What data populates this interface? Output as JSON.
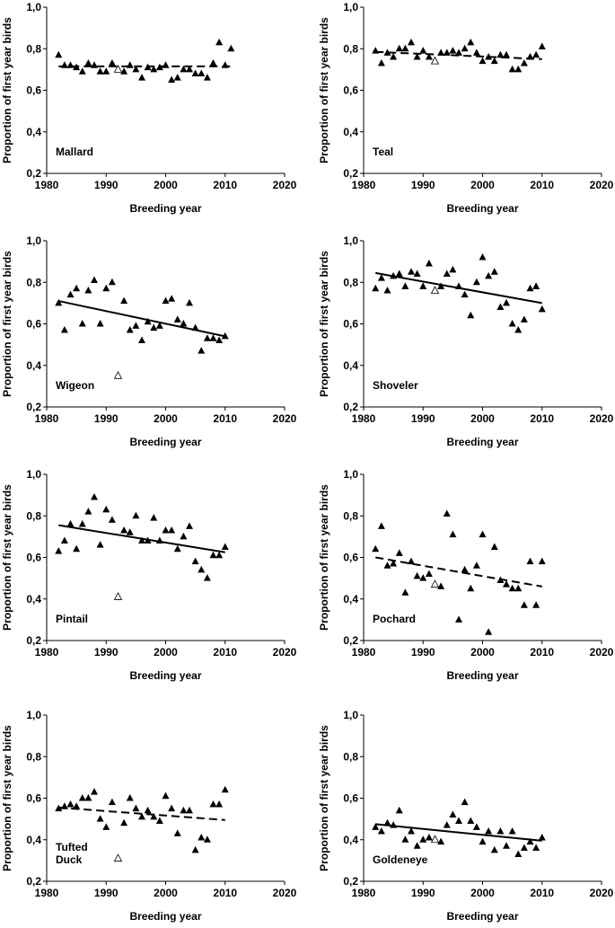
{
  "figure": {
    "xlabel": "Breeding year",
    "ylabel": "Proportion of first year birds",
    "x_ticks": [
      "1980",
      "1990",
      "2000",
      "2010",
      "2020"
    ],
    "y_ticks": [
      "0,2",
      "0,4",
      "0,6",
      "0,8",
      "1,0"
    ]
  },
  "chart_data": [
    {
      "type": "scatter",
      "species": [
        "Mallard"
      ],
      "xlim": [
        1980,
        2020
      ],
      "ylim": [
        0.2,
        1.0
      ],
      "points": [
        [
          1982,
          0.77
        ],
        [
          1983,
          0.72
        ],
        [
          1984,
          0.72
        ],
        [
          1985,
          0.71
        ],
        [
          1986,
          0.69
        ],
        [
          1987,
          0.73
        ],
        [
          1988,
          0.72
        ],
        [
          1989,
          0.69
        ],
        [
          1990,
          0.69
        ],
        [
          1991,
          0.73
        ],
        [
          1993,
          0.69
        ],
        [
          1994,
          0.72
        ],
        [
          1995,
          0.7
        ],
        [
          1996,
          0.66
        ],
        [
          1997,
          0.71
        ],
        [
          1998,
          0.7
        ],
        [
          1999,
          0.71
        ],
        [
          2000,
          0.72
        ],
        [
          2001,
          0.65
        ],
        [
          2002,
          0.66
        ],
        [
          2003,
          0.7
        ],
        [
          2004,
          0.7
        ],
        [
          2005,
          0.68
        ],
        [
          2006,
          0.68
        ],
        [
          2007,
          0.66
        ],
        [
          2008,
          0.73
        ],
        [
          2009,
          0.83
        ],
        [
          2010,
          0.72
        ],
        [
          2011,
          0.8
        ]
      ],
      "open_points": [
        [
          1992,
          0.7
        ]
      ],
      "trend": {
        "x": [
          1982,
          2011
        ],
        "y": [
          0.715,
          0.715
        ],
        "style": "dashed"
      }
    },
    {
      "type": "scatter",
      "species": [
        "Teal"
      ],
      "xlim": [
        1980,
        2020
      ],
      "ylim": [
        0.2,
        1.0
      ],
      "points": [
        [
          1982,
          0.79
        ],
        [
          1983,
          0.73
        ],
        [
          1984,
          0.78
        ],
        [
          1985,
          0.76
        ],
        [
          1986,
          0.8
        ],
        [
          1987,
          0.8
        ],
        [
          1988,
          0.83
        ],
        [
          1989,
          0.76
        ],
        [
          1990,
          0.79
        ],
        [
          1991,
          0.76
        ],
        [
          1993,
          0.78
        ],
        [
          1994,
          0.78
        ],
        [
          1995,
          0.79
        ],
        [
          1996,
          0.78
        ],
        [
          1997,
          0.8
        ],
        [
          1998,
          0.83
        ],
        [
          1999,
          0.78
        ],
        [
          2000,
          0.74
        ],
        [
          2001,
          0.76
        ],
        [
          2002,
          0.74
        ],
        [
          2003,
          0.77
        ],
        [
          2004,
          0.77
        ],
        [
          2005,
          0.7
        ],
        [
          2006,
          0.7
        ],
        [
          2007,
          0.73
        ],
        [
          2008,
          0.76
        ],
        [
          2009,
          0.77
        ],
        [
          2010,
          0.81
        ]
      ],
      "open_points": [
        [
          1992,
          0.74
        ]
      ],
      "trend": {
        "x": [
          1982,
          2010
        ],
        "y": [
          0.785,
          0.75
        ],
        "style": "dashed"
      }
    },
    {
      "type": "scatter",
      "species": [
        "Wigeon"
      ],
      "xlim": [
        1980,
        2020
      ],
      "ylim": [
        0.2,
        1.0
      ],
      "points": [
        [
          1982,
          0.7
        ],
        [
          1983,
          0.57
        ],
        [
          1984,
          0.74
        ],
        [
          1985,
          0.77
        ],
        [
          1986,
          0.6
        ],
        [
          1987,
          0.76
        ],
        [
          1988,
          0.81
        ],
        [
          1989,
          0.6
        ],
        [
          1990,
          0.77
        ],
        [
          1991,
          0.8
        ],
        [
          1993,
          0.71
        ],
        [
          1994,
          0.57
        ],
        [
          1995,
          0.59
        ],
        [
          1996,
          0.52
        ],
        [
          1997,
          0.61
        ],
        [
          1998,
          0.58
        ],
        [
          1999,
          0.59
        ],
        [
          2000,
          0.71
        ],
        [
          2001,
          0.72
        ],
        [
          2002,
          0.62
        ],
        [
          2003,
          0.6
        ],
        [
          2004,
          0.7
        ],
        [
          2005,
          0.58
        ],
        [
          2006,
          0.47
        ],
        [
          2007,
          0.53
        ],
        [
          2008,
          0.53
        ],
        [
          2009,
          0.52
        ],
        [
          2010,
          0.54
        ]
      ],
      "open_points": [
        [
          1992,
          0.35
        ]
      ],
      "trend": {
        "x": [
          1982,
          2010
        ],
        "y": [
          0.71,
          0.54
        ],
        "style": "solid"
      }
    },
    {
      "type": "scatter",
      "species": [
        "Shoveler"
      ],
      "xlim": [
        1980,
        2020
      ],
      "ylim": [
        0.2,
        1.0
      ],
      "points": [
        [
          1982,
          0.77
        ],
        [
          1983,
          0.82
        ],
        [
          1984,
          0.76
        ],
        [
          1985,
          0.83
        ],
        [
          1986,
          0.84
        ],
        [
          1987,
          0.78
        ],
        [
          1988,
          0.85
        ],
        [
          1989,
          0.84
        ],
        [
          1990,
          0.78
        ],
        [
          1991,
          0.89
        ],
        [
          1993,
          0.78
        ],
        [
          1994,
          0.84
        ],
        [
          1995,
          0.86
        ],
        [
          1996,
          0.78
        ],
        [
          1997,
          0.74
        ],
        [
          1998,
          0.64
        ],
        [
          1999,
          0.8
        ],
        [
          2000,
          0.92
        ],
        [
          2001,
          0.83
        ],
        [
          2002,
          0.85
        ],
        [
          2003,
          0.68
        ],
        [
          2004,
          0.7
        ],
        [
          2005,
          0.6
        ],
        [
          2006,
          0.57
        ],
        [
          2007,
          0.62
        ],
        [
          2008,
          0.77
        ],
        [
          2009,
          0.78
        ],
        [
          2010,
          0.67
        ]
      ],
      "open_points": [
        [
          1992,
          0.76
        ]
      ],
      "trend": {
        "x": [
          1982,
          2010
        ],
        "y": [
          0.845,
          0.7
        ],
        "style": "solid"
      }
    },
    {
      "type": "scatter",
      "species": [
        "Pintail"
      ],
      "xlim": [
        1980,
        2020
      ],
      "ylim": [
        0.2,
        1.0
      ],
      "points": [
        [
          1982,
          0.63
        ],
        [
          1983,
          0.68
        ],
        [
          1984,
          0.76
        ],
        [
          1985,
          0.64
        ],
        [
          1986,
          0.76
        ],
        [
          1987,
          0.82
        ],
        [
          1988,
          0.89
        ],
        [
          1989,
          0.66
        ],
        [
          1990,
          0.83
        ],
        [
          1991,
          0.78
        ],
        [
          1993,
          0.73
        ],
        [
          1994,
          0.72
        ],
        [
          1995,
          0.8
        ],
        [
          1996,
          0.68
        ],
        [
          1997,
          0.68
        ],
        [
          1998,
          0.79
        ],
        [
          1999,
          0.68
        ],
        [
          2000,
          0.73
        ],
        [
          2001,
          0.73
        ],
        [
          2002,
          0.64
        ],
        [
          2003,
          0.7
        ],
        [
          2004,
          0.75
        ],
        [
          2005,
          0.58
        ],
        [
          2006,
          0.54
        ],
        [
          2007,
          0.5
        ],
        [
          2008,
          0.61
        ],
        [
          2009,
          0.61
        ],
        [
          2010,
          0.65
        ]
      ],
      "open_points": [
        [
          1992,
          0.41
        ]
      ],
      "trend": {
        "x": [
          1982,
          2010
        ],
        "y": [
          0.755,
          0.625
        ],
        "style": "solid"
      }
    },
    {
      "type": "scatter",
      "species": [
        "Pochard"
      ],
      "xlim": [
        1980,
        2020
      ],
      "ylim": [
        0.2,
        1.0
      ],
      "points": [
        [
          1982,
          0.64
        ],
        [
          1983,
          0.75
        ],
        [
          1984,
          0.56
        ],
        [
          1985,
          0.57
        ],
        [
          1986,
          0.62
        ],
        [
          1987,
          0.43
        ],
        [
          1988,
          0.58
        ],
        [
          1989,
          0.51
        ],
        [
          1990,
          0.5
        ],
        [
          1991,
          0.52
        ],
        [
          1993,
          0.46
        ],
        [
          1994,
          0.81
        ],
        [
          1995,
          0.71
        ],
        [
          1996,
          0.3
        ],
        [
          1997,
          0.54
        ],
        [
          1998,
          0.45
        ],
        [
          1999,
          0.56
        ],
        [
          2000,
          0.71
        ],
        [
          2001,
          0.24
        ],
        [
          2002,
          0.65
        ],
        [
          2003,
          0.49
        ],
        [
          2004,
          0.47
        ],
        [
          2005,
          0.45
        ],
        [
          2006,
          0.45
        ],
        [
          2007,
          0.37
        ],
        [
          2008,
          0.58
        ],
        [
          2009,
          0.37
        ],
        [
          2010,
          0.58
        ]
      ],
      "open_points": [
        [
          1992,
          0.47
        ]
      ],
      "trend": {
        "x": [
          1982,
          2010
        ],
        "y": [
          0.6,
          0.46
        ],
        "style": "dashed"
      }
    },
    {
      "type": "scatter",
      "species": [
        "Tufted",
        "Duck"
      ],
      "xlim": [
        1980,
        2020
      ],
      "ylim": [
        0.2,
        1.0
      ],
      "points": [
        [
          1982,
          0.55
        ],
        [
          1983,
          0.56
        ],
        [
          1984,
          0.57
        ],
        [
          1985,
          0.56
        ],
        [
          1986,
          0.6
        ],
        [
          1987,
          0.6
        ],
        [
          1988,
          0.63
        ],
        [
          1989,
          0.5
        ],
        [
          1990,
          0.46
        ],
        [
          1991,
          0.58
        ],
        [
          1993,
          0.48
        ],
        [
          1994,
          0.6
        ],
        [
          1995,
          0.55
        ],
        [
          1996,
          0.51
        ],
        [
          1997,
          0.54
        ],
        [
          1998,
          0.51
        ],
        [
          1999,
          0.49
        ],
        [
          2000,
          0.61
        ],
        [
          2001,
          0.55
        ],
        [
          2002,
          0.43
        ],
        [
          2003,
          0.54
        ],
        [
          2004,
          0.54
        ],
        [
          2005,
          0.35
        ],
        [
          2006,
          0.41
        ],
        [
          2007,
          0.4
        ],
        [
          2008,
          0.57
        ],
        [
          2009,
          0.57
        ],
        [
          2010,
          0.64
        ]
      ],
      "open_points": [
        [
          1992,
          0.31
        ]
      ],
      "trend": {
        "x": [
          1982,
          2010
        ],
        "y": [
          0.555,
          0.495
        ],
        "style": "dashed"
      }
    },
    {
      "type": "scatter",
      "species": [
        "Goldeneye"
      ],
      "xlim": [
        1980,
        2020
      ],
      "ylim": [
        0.2,
        1.0
      ],
      "points": [
        [
          1982,
          0.46
        ],
        [
          1983,
          0.44
        ],
        [
          1984,
          0.48
        ],
        [
          1985,
          0.47
        ],
        [
          1986,
          0.54
        ],
        [
          1987,
          0.4
        ],
        [
          1988,
          0.44
        ],
        [
          1989,
          0.37
        ],
        [
          1990,
          0.4
        ],
        [
          1991,
          0.41
        ],
        [
          1993,
          0.39
        ],
        [
          1994,
          0.47
        ],
        [
          1995,
          0.52
        ],
        [
          1996,
          0.49
        ],
        [
          1997,
          0.58
        ],
        [
          1998,
          0.49
        ],
        [
          1999,
          0.46
        ],
        [
          2000,
          0.39
        ],
        [
          2001,
          0.44
        ],
        [
          2002,
          0.35
        ],
        [
          2003,
          0.44
        ],
        [
          2004,
          0.37
        ],
        [
          2005,
          0.44
        ],
        [
          2006,
          0.33
        ],
        [
          2007,
          0.36
        ],
        [
          2008,
          0.39
        ],
        [
          2009,
          0.36
        ],
        [
          2010,
          0.41
        ]
      ],
      "open_points": [
        [
          1992,
          0.4
        ]
      ],
      "trend": {
        "x": [
          1982,
          2010
        ],
        "y": [
          0.475,
          0.395
        ],
        "style": "solid"
      }
    }
  ]
}
